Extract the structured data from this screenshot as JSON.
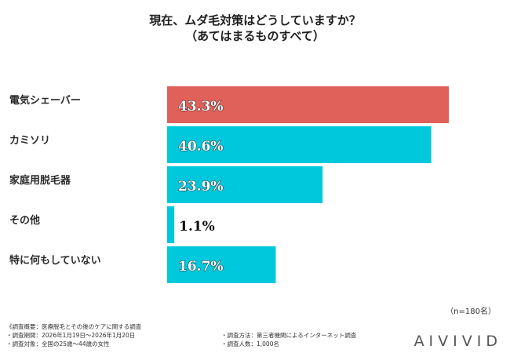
{
  "chart_data": {
    "type": "bar",
    "orientation": "horizontal",
    "title_line1": "現在、ムダ毛対策はどうしていますか？",
    "title_line2": "（あてはまるものすべて）",
    "categories": [
      "電気シェーバー",
      "カミソリ",
      "家庭用脱毛器",
      "その他",
      "特に何もしていない"
    ],
    "values": [
      43.3,
      40.6,
      23.9,
      1.1,
      16.7
    ],
    "value_labels": [
      "43.3%",
      "40.6%",
      "23.9%",
      "1.1%",
      "16.7%"
    ],
    "bar_colors": [
      "#e0605a",
      "#00c8dc",
      "#00c8dc",
      "#00c8dc",
      "#00c8dc"
    ],
    "xlim": [
      0,
      43.3
    ],
    "xlabel": "",
    "ylabel": ""
  },
  "sample_note": "（n=180名）",
  "footer": {
    "line1": "《調査概要：医療脱毛とその後のケアに関する調査",
    "line2": "・調査期間：2026年1月19日～2026年1月20日",
    "line3": "・調査対象：全国の25歳～44歳の女性",
    "line4": "・調査方法：第三者機関によるインターネット調査",
    "line5": "・調査人数：1,000名"
  },
  "logo": "AIVIVID"
}
